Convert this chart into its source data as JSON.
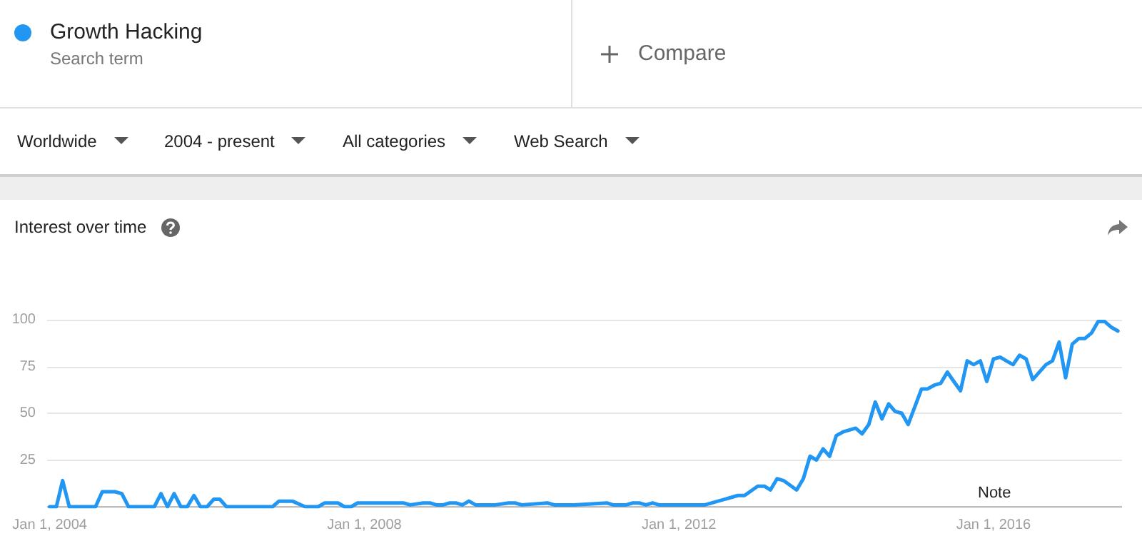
{
  "chart_data": {
    "type": "line",
    "title": "Interest over time",
    "annotations": [
      "Search term",
      "Compare",
      "Worldwide",
      "2004 - present",
      "All categories",
      "Web Search",
      "Note"
    ],
    "x": [
      "2004-01",
      "2004-02",
      "2004-03",
      "2004-04",
      "2004-08",
      "2004-09",
      "2004-11",
      "2004-12",
      "2005-01",
      "2005-05",
      "2005-06",
      "2005-07",
      "2005-08",
      "2005-09",
      "2005-10",
      "2005-11",
      "2005-12",
      "2006-01",
      "2006-02",
      "2006-03",
      "2006-04",
      "2006-11",
      "2006-12",
      "2007-02",
      "2007-04",
      "2007-06",
      "2007-07",
      "2007-09",
      "2007-10",
      "2007-11",
      "2007-12",
      "2008-07",
      "2008-08",
      "2008-10",
      "2008-11",
      "2008-12",
      "2009-01",
      "2009-02",
      "2009-03",
      "2009-04",
      "2009-05",
      "2009-06",
      "2009-07",
      "2009-09",
      "2009-11",
      "2009-12",
      "2010-01",
      "2010-05",
      "2010-06",
      "2010-09",
      "2011-02",
      "2011-03",
      "2011-05",
      "2011-06",
      "2011-07",
      "2011-08",
      "2011-09",
      "2011-10",
      "2012-05",
      "2012-10",
      "2012-11",
      "2013-01",
      "2013-02",
      "2013-03",
      "2013-04",
      "2013-05",
      "2013-07",
      "2013-08",
      "2013-09",
      "2013-10",
      "2013-11",
      "2013-12",
      "2014-01",
      "2014-02",
      "2014-04",
      "2014-05",
      "2014-06",
      "2014-07",
      "2014-08",
      "2014-09",
      "2014-10",
      "2014-11",
      "2014-12",
      "2015-02",
      "2015-03",
      "2015-04",
      "2015-05",
      "2015-06",
      "2015-07",
      "2015-08",
      "2015-09",
      "2015-10",
      "2015-11",
      "2015-12",
      "2016-01",
      "2016-02",
      "2016-03",
      "2016-04",
      "2016-05",
      "2016-06",
      "2016-07",
      "2016-08",
      "2016-09",
      "2016-10",
      "2016-11",
      "2016-12",
      "2017-01",
      "2017-02",
      "2017-03",
      "2017-04",
      "2017-05",
      "2017-06",
      "2017-07",
      "2017-08"
    ],
    "series": [
      {
        "name": "Growth Hacking",
        "color": "#2196f3",
        "values": [
          0,
          0,
          14,
          0,
          0,
          8,
          8,
          7,
          0,
          0,
          7,
          0,
          7,
          0,
          0,
          6,
          0,
          0,
          4,
          4,
          0,
          0,
          3,
          3,
          0,
          0,
          2,
          2,
          0,
          0,
          2,
          2,
          1,
          2,
          2,
          1,
          1,
          2,
          2,
          1,
          3,
          1,
          1,
          1,
          2,
          2,
          1,
          2,
          1,
          1,
          2,
          1,
          1,
          2,
          2,
          1,
          2,
          1,
          1,
          6,
          6,
          11,
          11,
          9,
          15,
          14,
          9,
          15,
          27,
          25,
          31,
          27,
          38,
          40,
          42,
          39,
          44,
          56,
          47,
          55,
          51,
          50,
          44,
          63,
          63,
          65,
          66,
          72,
          67,
          62,
          78,
          76,
          78,
          67,
          79,
          80,
          78,
          76,
          81,
          79,
          68,
          72,
          76,
          78,
          88,
          69,
          87,
          90,
          90,
          93,
          99,
          99,
          96,
          94
        ]
      }
    ],
    "xlim": [
      "2003-12-20",
      "2017-08-20"
    ],
    "xticks": [
      {
        "value": "2004-01-01",
        "label": "Jan 1, 2004"
      },
      {
        "value": "2008-01-01",
        "label": "Jan 1, 2008"
      },
      {
        "value": "2012-01-01",
        "label": "Jan 1, 2012"
      },
      {
        "value": "2016-01-01",
        "label": "Jan 1, 2016"
      }
    ],
    "ylim": [
      0,
      100
    ],
    "yticks": [
      {
        "value": 0,
        "label": null
      },
      25,
      50,
      75,
      100
    ],
    "grid": "y",
    "legend": "top left",
    "marker": "none",
    "line_style": "solid"
  }
}
